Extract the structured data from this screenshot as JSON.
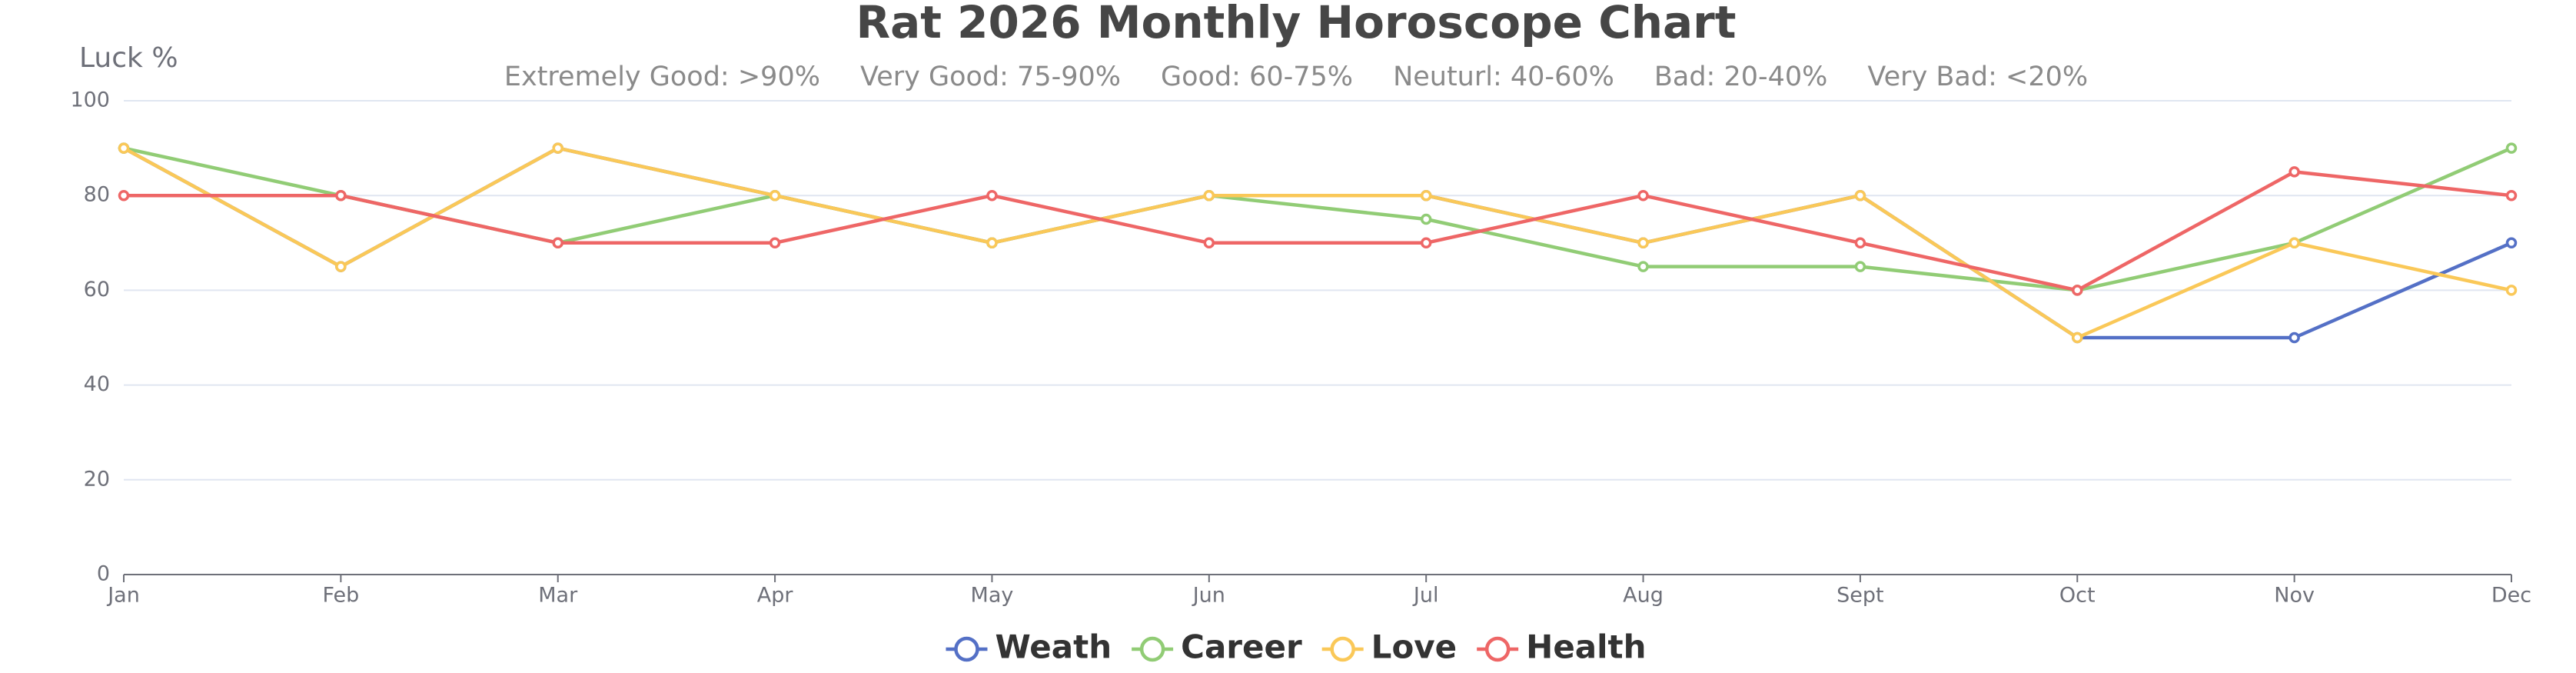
{
  "chart_data": {
    "type": "line",
    "title": "Rat 2026 Monthly Horoscope Chart",
    "subtitle": [
      "Extremely Good: >90%",
      "Very Good: 75-90%",
      "Good: 60-75%",
      "Neuturl: 40-60%",
      "Bad: 20-40%",
      "Very Bad: <20%"
    ],
    "y_label": "Luck %",
    "categories": [
      "Jan",
      "Feb",
      "Mar",
      "Apr",
      "May",
      "Jun",
      "Jul",
      "Aug",
      "Sept",
      "Oct",
      "Nov",
      "Dec"
    ],
    "series": [
      {
        "name": "Weath",
        "color": "#5470c6",
        "values": [
          90,
          65,
          90,
          80,
          70,
          80,
          80,
          70,
          80,
          50,
          50,
          70
        ]
      },
      {
        "name": "Career",
        "color": "#91cc75",
        "values": [
          90,
          80,
          70,
          80,
          70,
          80,
          75,
          65,
          65,
          60,
          70,
          90
        ]
      },
      {
        "name": "Love",
        "color": "#fac858",
        "values": [
          90,
          65,
          90,
          80,
          70,
          80,
          80,
          70,
          80,
          50,
          70,
          60
        ]
      },
      {
        "name": "Health",
        "color": "#ee6666",
        "values": [
          80,
          80,
          70,
          70,
          80,
          70,
          70,
          80,
          70,
          60,
          85,
          80
        ]
      }
    ],
    "ylim": [
      0,
      100
    ],
    "yticks": [
      0,
      20,
      40,
      60,
      80,
      100
    ],
    "grid": true,
    "legend": "bottom"
  }
}
